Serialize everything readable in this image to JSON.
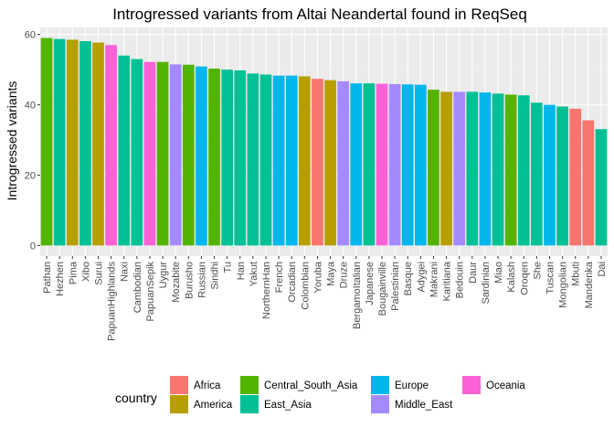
{
  "chart_data": {
    "type": "bar",
    "title": "Introgressed variants from Altai Neandertal found in ReqSeq",
    "xlabel": "",
    "ylabel": "Introgressed variants",
    "ylim": [
      0,
      60
    ],
    "yticks": [
      0,
      20,
      40,
      60
    ],
    "grid": true,
    "legend_position": "bottom",
    "legend_title": "country",
    "groups": [
      {
        "name": "Africa",
        "color": "#F8766D"
      },
      {
        "name": "America",
        "color": "#B79F00"
      },
      {
        "name": "Central_South_Asia",
        "color": "#53B400"
      },
      {
        "name": "East_Asia",
        "color": "#00C094"
      },
      {
        "name": "Europe",
        "color": "#00B6EB"
      },
      {
        "name": "Middle_East",
        "color": "#A58AFF"
      },
      {
        "name": "Oceania",
        "color": "#FB61D7"
      }
    ],
    "categories": [
      "Pathan",
      "Hezhen",
      "Pima",
      "Xibo",
      "Surui",
      "PapuanHighlands",
      "Naxi",
      "Cambodian",
      "PapuanSepik",
      "Uygur",
      "Mozabite",
      "Burusho",
      "Russian",
      "Sindhi",
      "Tu",
      "Han",
      "Yakut",
      "NorthernHan",
      "French",
      "Orcadian",
      "Colombian",
      "Yoruba",
      "Maya",
      "Druze",
      "BergamoItalian",
      "Japanese",
      "Bougainville",
      "Palestinian",
      "Basque",
      "Adygei",
      "Makrani",
      "Karitiana",
      "Bedouin",
      "Daur",
      "Sardinian",
      "Miao",
      "Kalash",
      "Oroqen",
      "She",
      "Tuscan",
      "Mongolian",
      "Mbuti",
      "Mandenka",
      "Dai"
    ],
    "values": [
      59.0,
      58.7,
      58.5,
      58.1,
      57.7,
      57.0,
      54.0,
      53.0,
      52.2,
      52.2,
      51.5,
      51.4,
      50.9,
      50.3,
      50.0,
      49.8,
      48.9,
      48.6,
      48.3,
      48.3,
      48.1,
      47.4,
      47.0,
      46.7,
      46.1,
      46.1,
      46.0,
      45.9,
      45.8,
      45.7,
      44.3,
      43.7,
      43.7,
      43.7,
      43.5,
      43.2,
      42.9,
      42.7,
      40.6,
      40.0,
      39.5,
      38.9,
      35.6,
      33.1
    ],
    "series_group": [
      "Central_South_Asia",
      "East_Asia",
      "America",
      "East_Asia",
      "America",
      "Oceania",
      "East_Asia",
      "East_Asia",
      "Oceania",
      "Central_South_Asia",
      "Middle_East",
      "Central_South_Asia",
      "Europe",
      "Central_South_Asia",
      "East_Asia",
      "East_Asia",
      "East_Asia",
      "East_Asia",
      "Europe",
      "Europe",
      "America",
      "Africa",
      "America",
      "Middle_East",
      "Europe",
      "East_Asia",
      "Oceania",
      "Middle_East",
      "Europe",
      "Europe",
      "Central_South_Asia",
      "America",
      "Middle_East",
      "East_Asia",
      "Europe",
      "East_Asia",
      "Central_South_Asia",
      "East_Asia",
      "East_Asia",
      "Europe",
      "East_Asia",
      "Africa",
      "Africa",
      "East_Asia"
    ]
  }
}
